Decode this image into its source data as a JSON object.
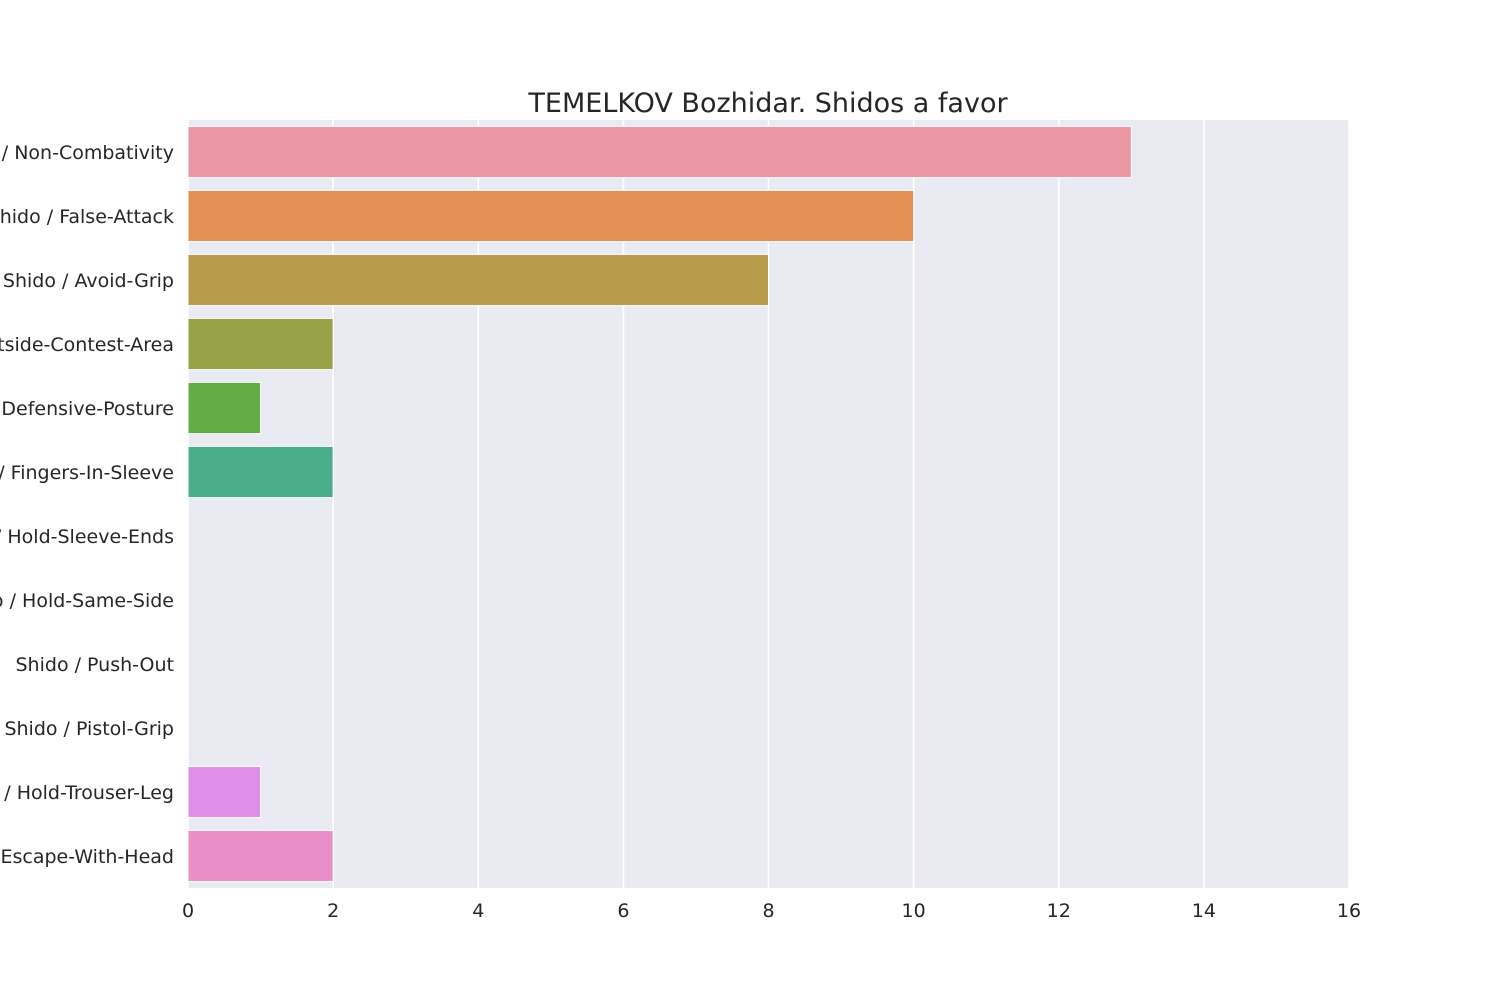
{
  "chart_data": {
    "type": "bar",
    "orientation": "horizontal",
    "title": "TEMELKOV Bozhidar. Shidos a favor",
    "xlabel": "",
    "ylabel": "",
    "xlim": [
      0,
      16
    ],
    "xticks": [
      "0",
      "2",
      "4",
      "6",
      "8",
      "10",
      "12",
      "14",
      "16"
    ],
    "grid": true,
    "categories": [
      "Shido / Non-Combativity",
      "Shido / False-Attack",
      "Shido / Avoid-Grip",
      "Shido / Outside-Contest-Area",
      "Shido / Defensive-Posture",
      "Shido / Fingers-In-Sleeve",
      "Shido / Hold-Sleeve-Ends",
      "Shido / Hold-Same-Side",
      "Shido / Push-Out",
      "Shido / Pistol-Grip",
      "Shido / Hold-Trouser-Leg",
      "Shido / Escape-With-Head"
    ],
    "values": [
      13,
      10,
      8,
      2,
      1,
      2,
      0,
      0,
      0,
      0,
      1,
      2
    ],
    "colors": [
      "#ea96a3",
      "#e19153",
      "#b89c49",
      "#98a246",
      "#61ae47",
      "#4bae8b",
      "#4daca6",
      "#52a9c2",
      "#71a7e7",
      "#b69cf3",
      "#e08fe9",
      "#e78fc6"
    ],
    "plot_background": "#eaeaf2",
    "grid_color": "#ffffff"
  }
}
